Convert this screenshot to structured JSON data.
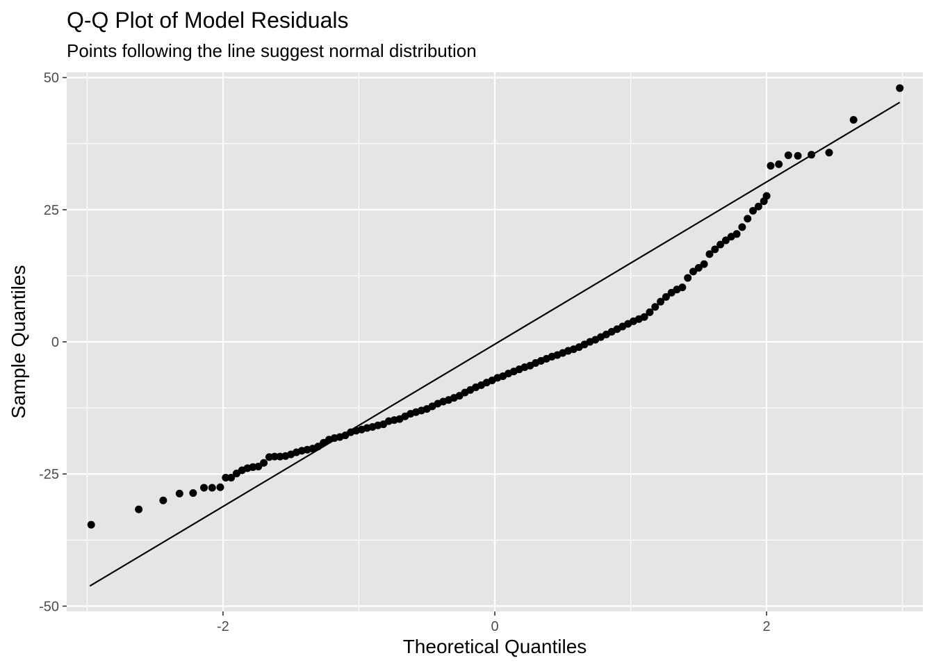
{
  "chart_data": {
    "type": "scatter",
    "title": "Q-Q Plot of Model Residuals",
    "subtitle": "Points following the line suggest normal distribution",
    "xlabel": "Theoretical Quantiles",
    "ylabel": "Sample Quantiles",
    "xlim": [
      -3.15,
      3.15
    ],
    "ylim": [
      -51,
      51
    ],
    "x_ticks": [
      -2,
      0,
      2
    ],
    "x_tick_labels": [
      "-2",
      "0",
      "2"
    ],
    "x_minor_ticks": [
      -3,
      -1,
      1,
      3
    ],
    "y_ticks": [
      -50,
      -25,
      0,
      25,
      50
    ],
    "y_tick_labels": [
      "-50",
      "-25",
      "0",
      "25",
      "50"
    ],
    "y_minor_ticks": [
      -37.5,
      -12.5,
      12.5,
      37.5
    ],
    "grid": true,
    "reference_line": {
      "x": [
        -2.98,
        2.98
      ],
      "y": [
        -46.2,
        45.3
      ]
    },
    "series": [
      {
        "name": "residuals",
        "points": [
          [
            -2.97,
            -34.6
          ],
          [
            -2.62,
            -31.7
          ],
          [
            -2.44,
            -30.0
          ],
          [
            -2.32,
            -28.7
          ],
          [
            -2.22,
            -28.6
          ],
          [
            -2.14,
            -27.6
          ],
          [
            -2.08,
            -27.6
          ],
          [
            -2.02,
            -27.5
          ],
          [
            -1.98,
            -25.7
          ],
          [
            -1.94,
            -25.7
          ],
          [
            -1.9,
            -24.9
          ],
          [
            -1.86,
            -24.3
          ],
          [
            -1.82,
            -23.9
          ],
          [
            -1.78,
            -23.7
          ],
          [
            -1.74,
            -23.6
          ],
          [
            -1.7,
            -22.9
          ],
          [
            -1.66,
            -21.8
          ],
          [
            -1.62,
            -21.7
          ],
          [
            -1.58,
            -21.7
          ],
          [
            -1.54,
            -21.6
          ],
          [
            -1.5,
            -21.3
          ],
          [
            -1.46,
            -20.9
          ],
          [
            -1.42,
            -20.6
          ],
          [
            -1.38,
            -20.4
          ],
          [
            -1.34,
            -20.2
          ],
          [
            -1.3,
            -19.8
          ],
          [
            -1.26,
            -19.1
          ],
          [
            -1.22,
            -18.5
          ],
          [
            -1.18,
            -18.2
          ],
          [
            -1.14,
            -18.0
          ],
          [
            -1.1,
            -17.7
          ],
          [
            -1.06,
            -17.1
          ],
          [
            -1.02,
            -16.8
          ],
          [
            -0.98,
            -16.6
          ],
          [
            -0.94,
            -16.3
          ],
          [
            -0.9,
            -16.1
          ],
          [
            -0.86,
            -15.8
          ],
          [
            -0.82,
            -15.6
          ],
          [
            -0.78,
            -15.0
          ],
          [
            -0.74,
            -14.8
          ],
          [
            -0.7,
            -14.6
          ],
          [
            -0.66,
            -14.1
          ],
          [
            -0.62,
            -13.6
          ],
          [
            -0.58,
            -13.3
          ],
          [
            -0.54,
            -13.0
          ],
          [
            -0.5,
            -12.7
          ],
          [
            -0.46,
            -12.2
          ],
          [
            -0.42,
            -11.7
          ],
          [
            -0.38,
            -11.3
          ],
          [
            -0.34,
            -11.0
          ],
          [
            -0.3,
            -10.6
          ],
          [
            -0.26,
            -10.2
          ],
          [
            -0.22,
            -9.6
          ],
          [
            -0.18,
            -9.1
          ],
          [
            -0.14,
            -8.6
          ],
          [
            -0.1,
            -8.2
          ],
          [
            -0.06,
            -7.7
          ],
          [
            -0.02,
            -7.3
          ],
          [
            0.02,
            -6.8
          ],
          [
            0.06,
            -6.5
          ],
          [
            0.1,
            -6.0
          ],
          [
            0.14,
            -5.6
          ],
          [
            0.18,
            -5.2
          ],
          [
            0.22,
            -4.8
          ],
          [
            0.26,
            -4.5
          ],
          [
            0.3,
            -4.0
          ],
          [
            0.34,
            -3.6
          ],
          [
            0.38,
            -3.2
          ],
          [
            0.42,
            -2.8
          ],
          [
            0.46,
            -2.5
          ],
          [
            0.5,
            -2.1
          ],
          [
            0.54,
            -1.7
          ],
          [
            0.58,
            -1.4
          ],
          [
            0.62,
            -1.0
          ],
          [
            0.66,
            -0.5
          ],
          [
            0.7,
            0.0
          ],
          [
            0.74,
            0.4
          ],
          [
            0.78,
            0.9
          ],
          [
            0.82,
            1.4
          ],
          [
            0.86,
            1.9
          ],
          [
            0.9,
            2.4
          ],
          [
            0.94,
            2.9
          ],
          [
            0.98,
            3.4
          ],
          [
            1.02,
            3.9
          ],
          [
            1.06,
            4.3
          ],
          [
            1.1,
            4.7
          ],
          [
            1.14,
            5.6
          ],
          [
            1.18,
            6.6
          ],
          [
            1.22,
            7.6
          ],
          [
            1.26,
            8.5
          ],
          [
            1.3,
            9.3
          ],
          [
            1.34,
            9.9
          ],
          [
            1.38,
            10.3
          ],
          [
            1.42,
            12.1
          ],
          [
            1.46,
            13.3
          ],
          [
            1.5,
            14.0
          ],
          [
            1.54,
            14.7
          ],
          [
            1.58,
            16.6
          ],
          [
            1.62,
            17.5
          ],
          [
            1.66,
            18.4
          ],
          [
            1.7,
            19.2
          ],
          [
            1.74,
            19.9
          ],
          [
            1.78,
            20.4
          ],
          [
            1.82,
            21.7
          ],
          [
            1.86,
            23.3
          ],
          [
            1.9,
            24.8
          ],
          [
            1.94,
            25.6
          ],
          [
            1.98,
            26.6
          ],
          [
            2.0,
            27.6
          ],
          [
            2.03,
            33.3
          ],
          [
            2.09,
            33.6
          ],
          [
            2.16,
            35.3
          ],
          [
            2.23,
            35.2
          ],
          [
            2.33,
            35.4
          ],
          [
            2.46,
            35.8
          ],
          [
            2.64,
            42.0
          ],
          [
            2.98,
            48.0
          ]
        ]
      }
    ]
  }
}
